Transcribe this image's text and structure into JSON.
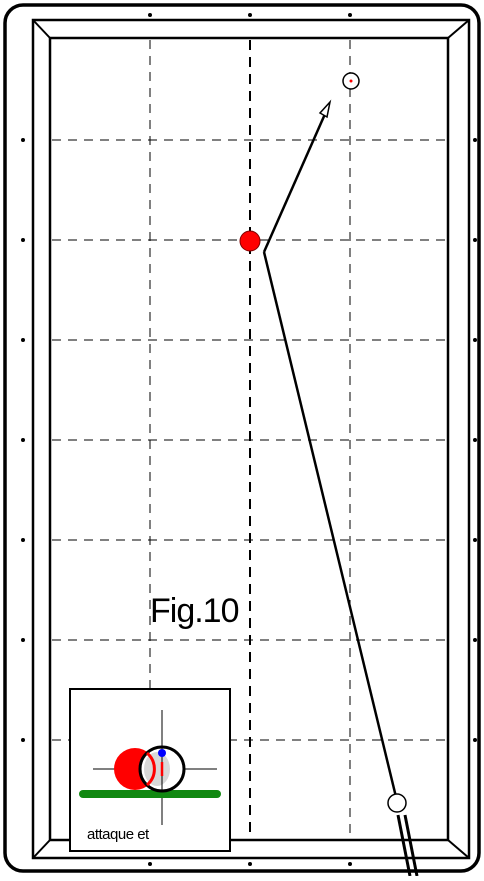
{
  "figure": {
    "label": "Fig.10",
    "inset_caption": "attaque et"
  },
  "colors": {
    "frame": "#000000",
    "table_bed": "#ffffff",
    "object_ball": "#ff0000",
    "cue_tip_marker": "#0000ff",
    "felt_line": "#118811",
    "target_dot": "#ff0000"
  },
  "icons": {
    "diamonds": "diamond-dot-icon",
    "object_ball": "red-ball-icon",
    "cue_ball": "cue-ball-icon",
    "target": "target-ball-icon",
    "cue": "cue-stick-icon",
    "arrow": "arrow-head-icon"
  }
}
